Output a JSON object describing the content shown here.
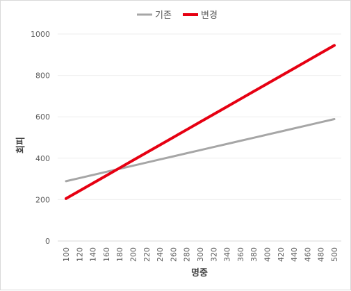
{
  "chart_data": {
    "type": "line",
    "x": [
      100,
      120,
      140,
      160,
      180,
      200,
      220,
      240,
      260,
      280,
      300,
      320,
      340,
      360,
      380,
      400,
      420,
      440,
      460,
      480,
      500
    ],
    "series": [
      {
        "name": "기존",
        "color": "#a6a6a6",
        "values": [
          289,
          304,
          319,
          334,
          349,
          364,
          379,
          394,
          409,
          424,
          439,
          454,
          469,
          484,
          499,
          514,
          529,
          544,
          559,
          574,
          589
        ]
      },
      {
        "name": "변경",
        "color": "#e60012",
        "values": [
          205,
          242,
          279,
          316,
          353,
          390,
          427,
          464,
          501,
          538,
          575,
          612,
          649,
          686,
          723,
          760,
          797,
          834,
          871,
          908,
          945
        ]
      }
    ],
    "xlabel": "명중",
    "ylabel": "회피",
    "ylim": [
      0,
      1000
    ],
    "yticks": [
      0,
      200,
      400,
      600,
      800,
      1000
    ],
    "xticks": [
      "100",
      "120",
      "140",
      "160",
      "180",
      "200",
      "220",
      "240",
      "260",
      "280",
      "300",
      "320",
      "340",
      "360",
      "380",
      "400",
      "420",
      "440",
      "460",
      "480",
      "500"
    ],
    "grid": true,
    "legend": "top-center"
  }
}
